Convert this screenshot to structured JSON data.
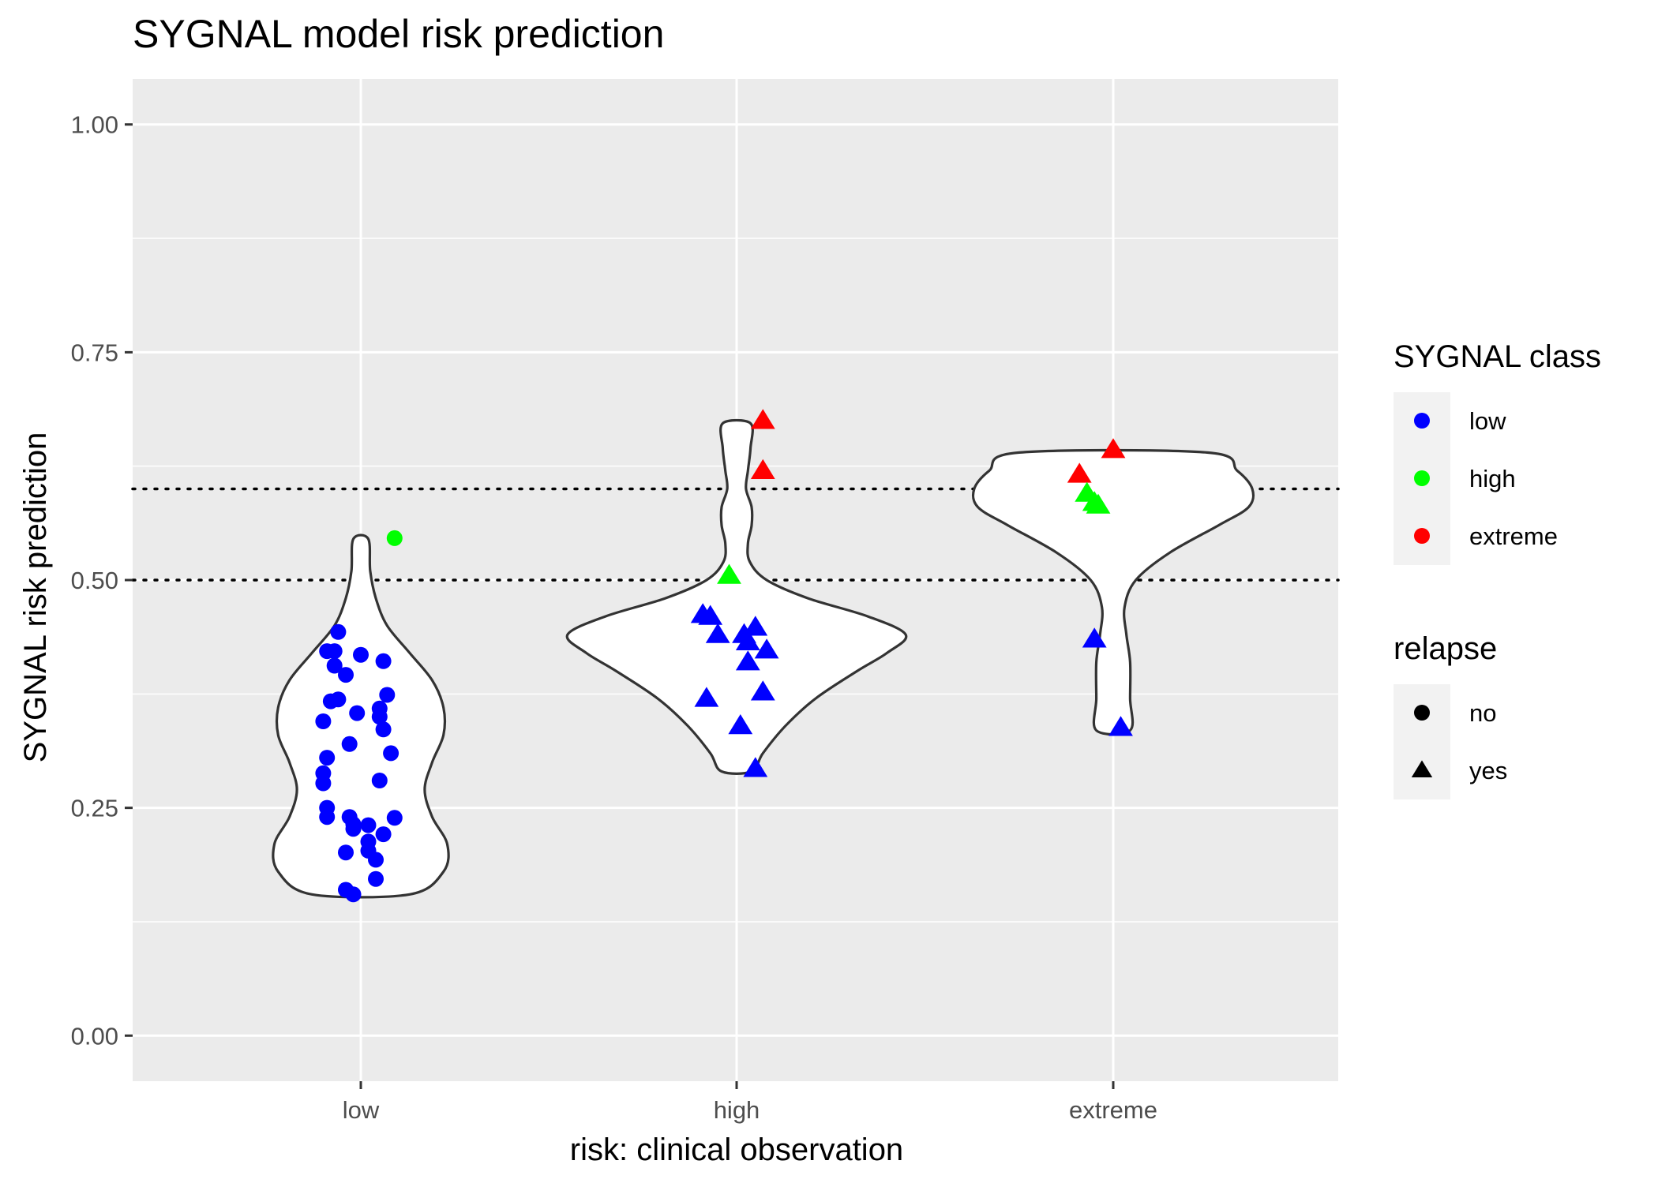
{
  "chart_data": {
    "type": "scatter",
    "subtype": "violin-with-jittered-points",
    "title": "SYGNAL model risk prediction",
    "xlabel": "risk: clinical observation",
    "ylabel": "SYGNAL risk prediction",
    "categories": [
      "low",
      "high",
      "extreme"
    ],
    "ylim": [
      -0.05,
      1.05
    ],
    "yticks": [
      "0.00",
      "0.25",
      "0.50",
      "0.75",
      "1.00"
    ],
    "ytick_values": [
      0,
      0.25,
      0.5,
      0.75,
      1.0
    ],
    "reference_lines": [
      0.5,
      0.6
    ],
    "grid": true,
    "legend_position": "right",
    "colors": {
      "panel": "#ebebeb",
      "grid": "#ffffff",
      "low": "#0000ff",
      "high": "#00ff00",
      "extreme": "#ff0000",
      "violin_stroke": "#333333"
    },
    "legends": [
      {
        "title": "SYGNAL class",
        "items": [
          {
            "label": "low",
            "color": "#0000ff",
            "shape": "circle"
          },
          {
            "label": "high",
            "color": "#00ff00",
            "shape": "circle"
          },
          {
            "label": "extreme",
            "color": "#ff0000",
            "shape": "circle"
          }
        ]
      },
      {
        "title": "relapse",
        "items": [
          {
            "label": "no",
            "color": "#000000",
            "shape": "circle"
          },
          {
            "label": "yes",
            "color": "#000000",
            "shape": "triangle"
          }
        ]
      }
    ],
    "violins": [
      {
        "category": "low",
        "profile": [
          [
            0.155,
            0.13
          ],
          [
            0.18,
            0.22
          ],
          [
            0.21,
            0.23
          ],
          [
            0.24,
            0.19
          ],
          [
            0.27,
            0.17
          ],
          [
            0.3,
            0.19
          ],
          [
            0.33,
            0.22
          ],
          [
            0.36,
            0.22
          ],
          [
            0.39,
            0.19
          ],
          [
            0.42,
            0.13
          ],
          [
            0.45,
            0.07
          ],
          [
            0.48,
            0.04
          ],
          [
            0.51,
            0.025
          ],
          [
            0.545,
            0.02
          ]
        ]
      },
      {
        "category": "high",
        "profile": [
          [
            0.29,
            0.04
          ],
          [
            0.31,
            0.07
          ],
          [
            0.34,
            0.13
          ],
          [
            0.37,
            0.21
          ],
          [
            0.4,
            0.32
          ],
          [
            0.42,
            0.4
          ],
          [
            0.44,
            0.45
          ],
          [
            0.46,
            0.35
          ],
          [
            0.48,
            0.19
          ],
          [
            0.5,
            0.08
          ],
          [
            0.52,
            0.035
          ],
          [
            0.54,
            0.03
          ],
          [
            0.56,
            0.04
          ],
          [
            0.58,
            0.04
          ],
          [
            0.6,
            0.025
          ],
          [
            0.62,
            0.03
          ],
          [
            0.645,
            0.037
          ],
          [
            0.672,
            0.037
          ]
        ]
      },
      {
        "category": "extreme",
        "profile": [
          [
            0.335,
            0.045
          ],
          [
            0.37,
            0.045
          ],
          [
            0.41,
            0.045
          ],
          [
            0.44,
            0.035
          ],
          [
            0.47,
            0.03
          ],
          [
            0.5,
            0.06
          ],
          [
            0.53,
            0.15
          ],
          [
            0.56,
            0.28
          ],
          [
            0.58,
            0.36
          ],
          [
            0.6,
            0.37
          ],
          [
            0.62,
            0.33
          ],
          [
            0.64,
            0.25
          ]
        ]
      }
    ],
    "points": [
      {
        "category": "low",
        "x_offset": -0.06,
        "y": 0.443,
        "class": "low",
        "relapse": "no"
      },
      {
        "category": "low",
        "x_offset": -0.09,
        "y": 0.422,
        "class": "low",
        "relapse": "no"
      },
      {
        "category": "low",
        "x_offset": -0.07,
        "y": 0.422,
        "class": "low",
        "relapse": "no"
      },
      {
        "category": "low",
        "x_offset": 0.0,
        "y": 0.418,
        "class": "low",
        "relapse": "no"
      },
      {
        "category": "low",
        "x_offset": 0.06,
        "y": 0.411,
        "class": "low",
        "relapse": "no"
      },
      {
        "category": "low",
        "x_offset": -0.07,
        "y": 0.406,
        "class": "low",
        "relapse": "no"
      },
      {
        "category": "low",
        "x_offset": -0.04,
        "y": 0.396,
        "class": "low",
        "relapse": "no"
      },
      {
        "category": "low",
        "x_offset": 0.07,
        "y": 0.374,
        "class": "low",
        "relapse": "no"
      },
      {
        "category": "low",
        "x_offset": -0.06,
        "y": 0.369,
        "class": "low",
        "relapse": "no"
      },
      {
        "category": "low",
        "x_offset": -0.08,
        "y": 0.367,
        "class": "low",
        "relapse": "no"
      },
      {
        "category": "low",
        "x_offset": 0.05,
        "y": 0.359,
        "class": "low",
        "relapse": "no"
      },
      {
        "category": "low",
        "x_offset": -0.01,
        "y": 0.354,
        "class": "low",
        "relapse": "no"
      },
      {
        "category": "low",
        "x_offset": 0.05,
        "y": 0.35,
        "class": "low",
        "relapse": "no"
      },
      {
        "category": "low",
        "x_offset": -0.1,
        "y": 0.345,
        "class": "low",
        "relapse": "no"
      },
      {
        "category": "low",
        "x_offset": 0.06,
        "y": 0.336,
        "class": "low",
        "relapse": "no"
      },
      {
        "category": "low",
        "x_offset": -0.03,
        "y": 0.32,
        "class": "low",
        "relapse": "no"
      },
      {
        "category": "low",
        "x_offset": 0.08,
        "y": 0.31,
        "class": "low",
        "relapse": "no"
      },
      {
        "category": "low",
        "x_offset": -0.09,
        "y": 0.305,
        "class": "low",
        "relapse": "no"
      },
      {
        "category": "low",
        "x_offset": -0.1,
        "y": 0.288,
        "class": "low",
        "relapse": "no"
      },
      {
        "category": "low",
        "x_offset": 0.05,
        "y": 0.28,
        "class": "low",
        "relapse": "no"
      },
      {
        "category": "low",
        "x_offset": -0.1,
        "y": 0.277,
        "class": "low",
        "relapse": "no"
      },
      {
        "category": "low",
        "x_offset": -0.09,
        "y": 0.25,
        "class": "low",
        "relapse": "no"
      },
      {
        "category": "low",
        "x_offset": -0.09,
        "y": 0.24,
        "class": "low",
        "relapse": "no"
      },
      {
        "category": "low",
        "x_offset": -0.03,
        "y": 0.24,
        "class": "low",
        "relapse": "no"
      },
      {
        "category": "low",
        "x_offset": 0.09,
        "y": 0.239,
        "class": "low",
        "relapse": "no"
      },
      {
        "category": "low",
        "x_offset": -0.02,
        "y": 0.232,
        "class": "low",
        "relapse": "no"
      },
      {
        "category": "low",
        "x_offset": 0.02,
        "y": 0.231,
        "class": "low",
        "relapse": "no"
      },
      {
        "category": "low",
        "x_offset": -0.02,
        "y": 0.227,
        "class": "low",
        "relapse": "no"
      },
      {
        "category": "low",
        "x_offset": 0.06,
        "y": 0.221,
        "class": "low",
        "relapse": "no"
      },
      {
        "category": "low",
        "x_offset": 0.02,
        "y": 0.213,
        "class": "low",
        "relapse": "no"
      },
      {
        "category": "low",
        "x_offset": 0.02,
        "y": 0.203,
        "class": "low",
        "relapse": "no"
      },
      {
        "category": "low",
        "x_offset": -0.04,
        "y": 0.201,
        "class": "low",
        "relapse": "no"
      },
      {
        "category": "low",
        "x_offset": 0.04,
        "y": 0.193,
        "class": "low",
        "relapse": "no"
      },
      {
        "category": "low",
        "x_offset": 0.04,
        "y": 0.172,
        "class": "low",
        "relapse": "no"
      },
      {
        "category": "low",
        "x_offset": -0.04,
        "y": 0.16,
        "class": "low",
        "relapse": "no"
      },
      {
        "category": "low",
        "x_offset": -0.02,
        "y": 0.155,
        "class": "low",
        "relapse": "no"
      },
      {
        "category": "low",
        "x_offset": 0.09,
        "y": 0.546,
        "class": "high",
        "relapse": "no"
      },
      {
        "category": "high",
        "x_offset": 0.07,
        "y": 0.675,
        "class": "extreme",
        "relapse": "yes"
      },
      {
        "category": "high",
        "x_offset": 0.07,
        "y": 0.62,
        "class": "extreme",
        "relapse": "yes"
      },
      {
        "category": "high",
        "x_offset": -0.02,
        "y": 0.505,
        "class": "high",
        "relapse": "yes"
      },
      {
        "category": "high",
        "x_offset": -0.09,
        "y": 0.462,
        "class": "low",
        "relapse": "yes"
      },
      {
        "category": "high",
        "x_offset": -0.07,
        "y": 0.46,
        "class": "low",
        "relapse": "yes"
      },
      {
        "category": "high",
        "x_offset": 0.05,
        "y": 0.448,
        "class": "low",
        "relapse": "yes"
      },
      {
        "category": "high",
        "x_offset": -0.05,
        "y": 0.44,
        "class": "low",
        "relapse": "yes"
      },
      {
        "category": "high",
        "x_offset": 0.02,
        "y": 0.44,
        "class": "low",
        "relapse": "yes"
      },
      {
        "category": "high",
        "x_offset": 0.03,
        "y": 0.432,
        "class": "low",
        "relapse": "yes"
      },
      {
        "category": "high",
        "x_offset": 0.08,
        "y": 0.423,
        "class": "low",
        "relapse": "yes"
      },
      {
        "category": "high",
        "x_offset": 0.03,
        "y": 0.41,
        "class": "low",
        "relapse": "yes"
      },
      {
        "category": "high",
        "x_offset": 0.07,
        "y": 0.377,
        "class": "low",
        "relapse": "yes"
      },
      {
        "category": "high",
        "x_offset": -0.08,
        "y": 0.37,
        "class": "low",
        "relapse": "yes"
      },
      {
        "category": "high",
        "x_offset": 0.01,
        "y": 0.34,
        "class": "low",
        "relapse": "yes"
      },
      {
        "category": "high",
        "x_offset": 0.05,
        "y": 0.293,
        "class": "low",
        "relapse": "yes"
      },
      {
        "category": "extreme",
        "x_offset": 0.0,
        "y": 0.643,
        "class": "extreme",
        "relapse": "yes"
      },
      {
        "category": "extreme",
        "x_offset": -0.09,
        "y": 0.616,
        "class": "extreme",
        "relapse": "yes"
      },
      {
        "category": "extreme",
        "x_offset": -0.07,
        "y": 0.595,
        "class": "high",
        "relapse": "yes"
      },
      {
        "category": "extreme",
        "x_offset": -0.05,
        "y": 0.585,
        "class": "high",
        "relapse": "yes"
      },
      {
        "category": "extreme",
        "x_offset": -0.04,
        "y": 0.582,
        "class": "high",
        "relapse": "yes"
      },
      {
        "category": "extreme",
        "x_offset": -0.05,
        "y": 0.435,
        "class": "low",
        "relapse": "yes"
      },
      {
        "category": "extreme",
        "x_offset": 0.02,
        "y": 0.338,
        "class": "low",
        "relapse": "yes"
      }
    ]
  }
}
